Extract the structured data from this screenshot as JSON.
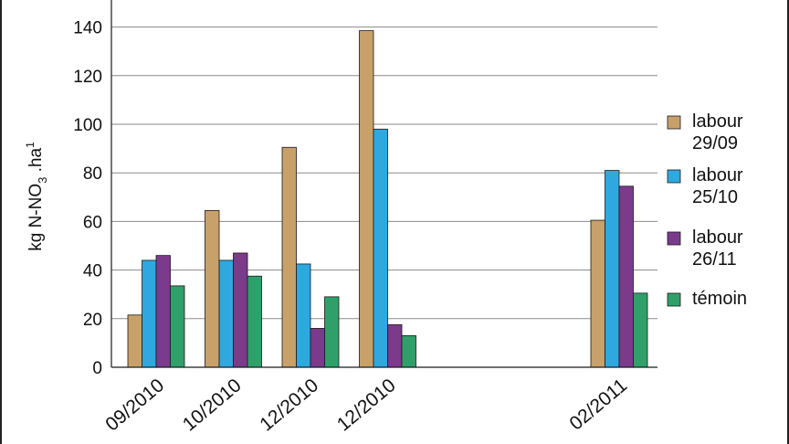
{
  "chart_data": {
    "type": "bar",
    "ylabel_parts": {
      "main": "kg N-NO",
      "sub": "3",
      "mid": " .ha",
      "sup": "1"
    },
    "categories": [
      "09/2010",
      "10/2010",
      "12/2010",
      "12/2010",
      "02/2011"
    ],
    "group_positions": [
      0,
      1,
      2,
      3,
      6
    ],
    "ylim": [
      0,
      145
    ],
    "yticks": [
      0,
      20,
      40,
      60,
      80,
      100,
      120,
      140
    ],
    "grid": true,
    "legend_position": "right",
    "series": [
      {
        "name": "labour 29/09",
        "lines": [
          "labour",
          "29/09"
        ],
        "color": "#c8a06a",
        "values": [
          21.5,
          64.5,
          90.5,
          138.5,
          60.5
        ]
      },
      {
        "name": "labour 25/10",
        "lines": [
          "labour",
          "25/10"
        ],
        "color": "#2fa8e0",
        "values": [
          44,
          44,
          42.5,
          98,
          81
        ]
      },
      {
        "name": "labour 26/11",
        "lines": [
          "labour",
          "26/11"
        ],
        "color": "#7b3a8c",
        "values": [
          46,
          47,
          16,
          17.5,
          74.5
        ]
      },
      {
        "name": "témoin",
        "lines": [
          "témoin"
        ],
        "color": "#2fa06a",
        "values": [
          33.5,
          37.5,
          29,
          13,
          30.5
        ]
      }
    ]
  }
}
